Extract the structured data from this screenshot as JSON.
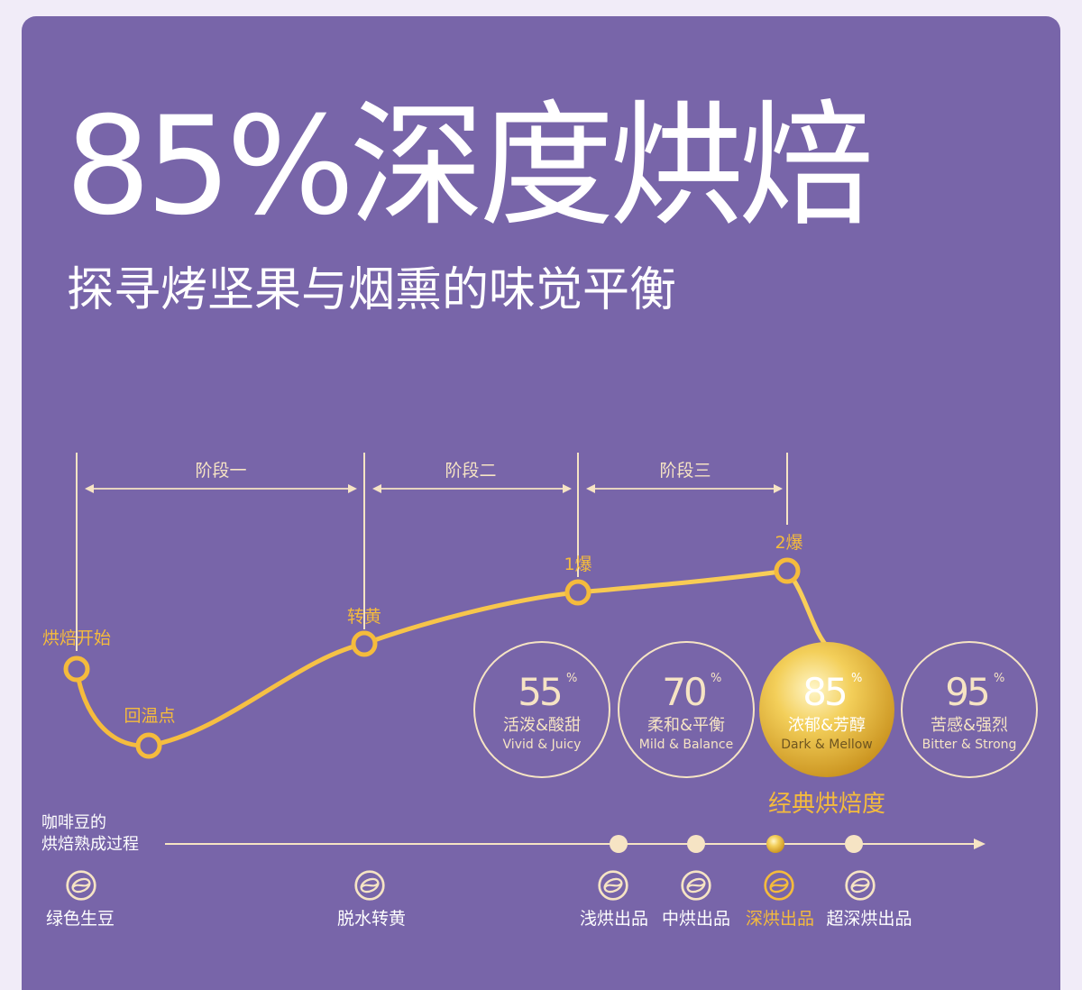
{
  "headline": {
    "title": "85%深度烘焙",
    "subtitle": "探寻烤坚果与烟熏的味觉平衡"
  },
  "stages": [
    "阶段一",
    "阶段二",
    "阶段三"
  ],
  "curve_points": [
    "烘焙开始",
    "回温点",
    "转黄",
    "1爆",
    "2爆"
  ],
  "roast_levels": [
    {
      "value": "55",
      "unit": "%",
      "cn": "活泼&酸甜",
      "en": "Vivid & Juicy",
      "highlighted": false
    },
    {
      "value": "70",
      "unit": "%",
      "cn": "柔和&平衡",
      "en": "Mild & Balance",
      "highlighted": false
    },
    {
      "value": "85",
      "unit": "%",
      "cn": "浓郁&芳醇",
      "en": "Dark & Mellow",
      "highlighted": true
    },
    {
      "value": "95",
      "unit": "%",
      "cn": "苦感&强烈",
      "en": "Bitter & Strong",
      "highlighted": false
    }
  ],
  "classic_label": "经典烘焙度",
  "process_label": [
    "咖啡豆的",
    "烘焙熟成过程"
  ],
  "process_steps": [
    "绿色生豆",
    "脱水转黄",
    "浅烘出品",
    "中烘出品",
    "深烘出品",
    "超深烘出品"
  ],
  "colors": {
    "background": "#7865a9",
    "cream": "#f6e4c4",
    "gold": "#f5bb3c",
    "text": "#ffffff"
  },
  "icons": [
    "coffee-bean-icon"
  ]
}
